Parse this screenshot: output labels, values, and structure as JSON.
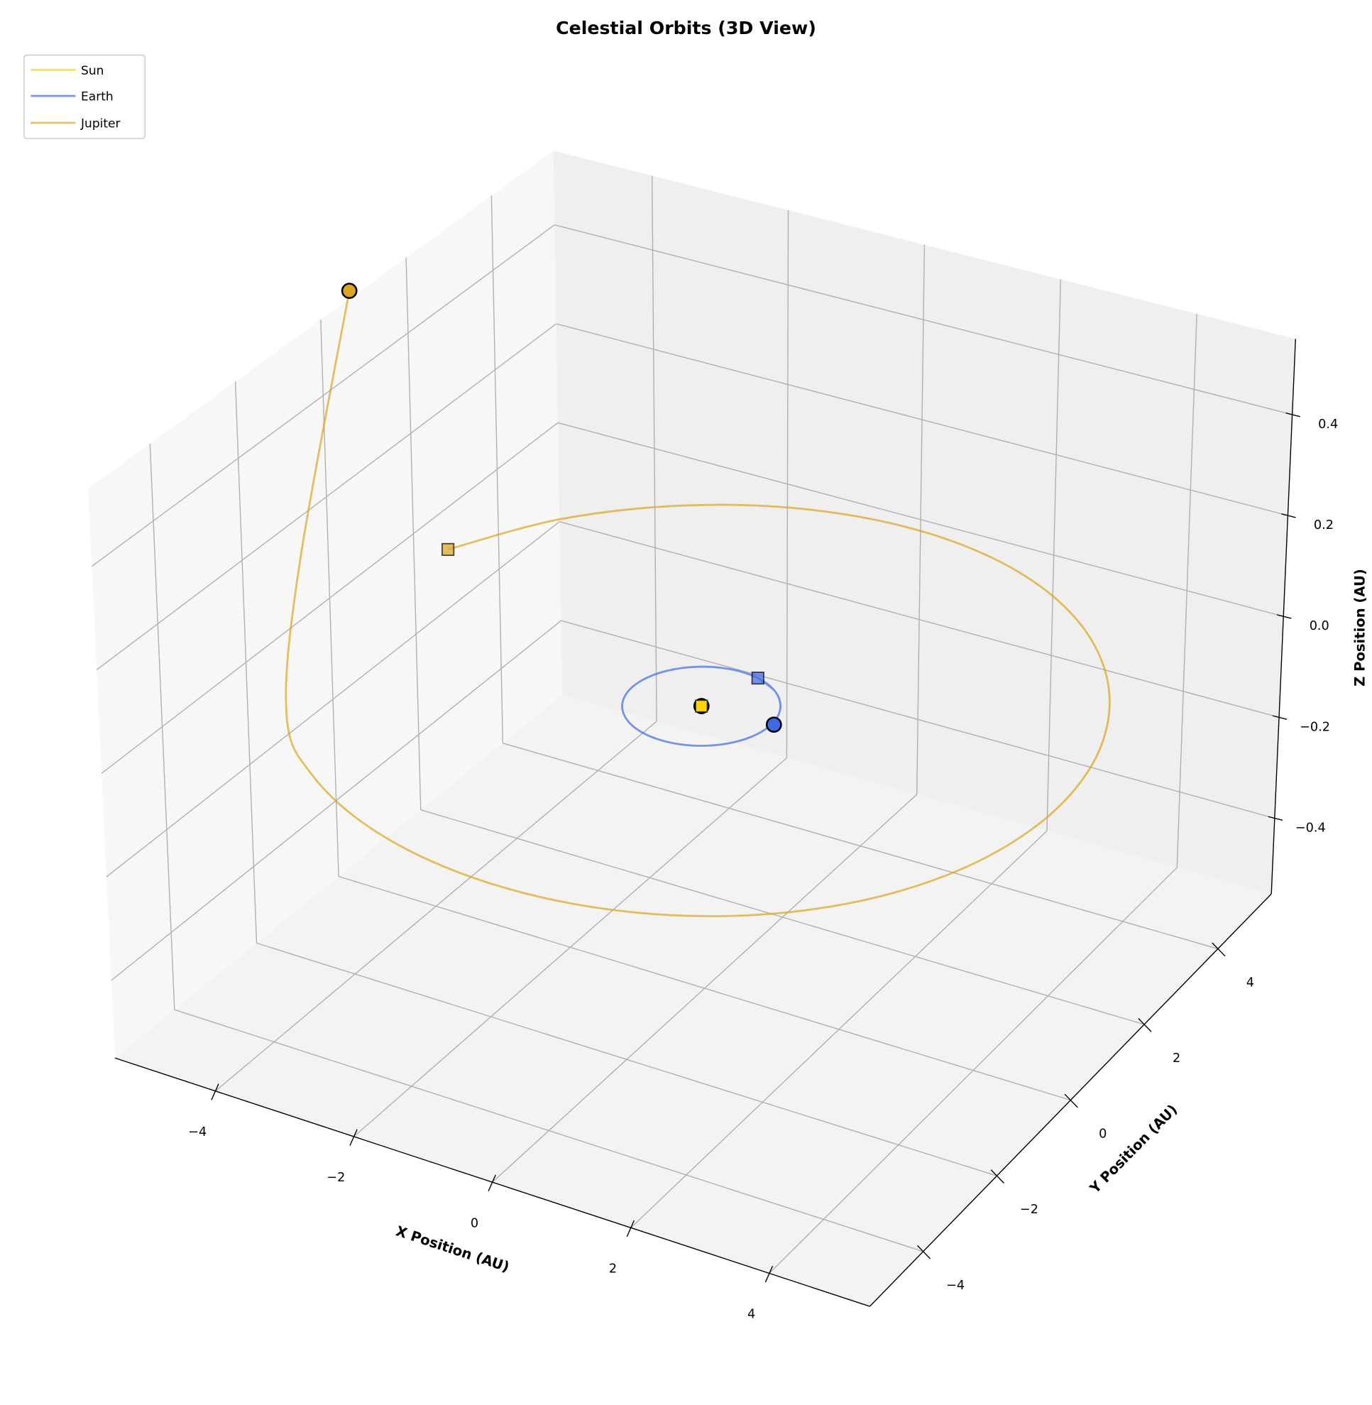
{
  "chart_data": {
    "type": "line3d",
    "title": "Celestial Orbits (3D View)",
    "xlabel": "X Position (AU)",
    "ylabel": "Y Position (AU)",
    "zlabel": "Z Position (AU)",
    "xlim": [
      -5.45,
      5.45
    ],
    "ylim": [
      -5.45,
      5.45
    ],
    "zlim": [
      -0.55,
      0.55
    ],
    "xticks": [
      -4,
      -2,
      0,
      2,
      4
    ],
    "yticks": [
      -4,
      -2,
      0,
      2,
      4
    ],
    "zticks": [
      -0.4,
      -0.2,
      0.0,
      0.2,
      0.4
    ],
    "xtick_labels": [
      "−4",
      "−2",
      "0",
      "2",
      "4"
    ],
    "ytick_labels": [
      "−4",
      "−2",
      "0",
      "2",
      "4"
    ],
    "ztick_labels": [
      "−0.4",
      "−0.2",
      "0.0",
      "0.2",
      "0.4"
    ],
    "grid": true,
    "legend_position": "top-left",
    "start_marker": "square",
    "end_marker": "circle",
    "series": [
      {
        "name": "Sun",
        "color": "#FFD700",
        "x": [
          0,
          0
        ],
        "y": [
          0,
          0
        ],
        "z": [
          0,
          0
        ]
      },
      {
        "name": "Earth",
        "color": "#4169E1",
        "x": [
          0.259,
          0.629,
          0.891,
          0.999,
          0.934,
          0.707,
          0.358,
          -0.052,
          -0.454,
          -0.777,
          -0.966,
          -0.988,
          -0.839,
          -0.545,
          -0.156,
          0.259,
          0.629,
          0.891,
          1.03
        ],
        "y": [
          0.966,
          0.777,
          0.454,
          0.052,
          -0.358,
          -0.707,
          -0.934,
          -0.999,
          -0.891,
          -0.629,
          -0.259,
          0.156,
          0.545,
          0.839,
          0.988,
          0.966,
          0.777,
          0.454,
          0.054
        ],
        "z": [
          0,
          0,
          0,
          0,
          0,
          0,
          0,
          0,
          0,
          0,
          0,
          0,
          0,
          0,
          0,
          0,
          0,
          0,
          0
        ]
      },
      {
        "name": "Jupiter",
        "color": "#DAA520",
        "x": [
          -4.855,
          -4.041,
          -2.832,
          -1.346,
          0.272,
          1.864,
          3.272,
          4.361,
          5.023,
          5.193,
          4.855,
          4.041,
          2.832,
          1.346,
          -0.272,
          -1.864,
          -3.272,
          -4.361,
          -5.023,
          -5.193
        ],
        "y": [
          1.864,
          3.272,
          4.361,
          5.023,
          5.193,
          4.855,
          4.041,
          2.832,
          1.346,
          -0.272,
          -1.864,
          -3.272,
          -4.361,
          -5.023,
          -5.193,
          -4.855,
          -4.041,
          -2.832,
          -1.346,
          0.272
        ],
        "z": [
          0,
          0,
          0,
          0,
          0,
          0,
          0,
          0,
          0,
          0,
          0,
          0,
          0,
          0,
          0,
          0,
          0,
          0,
          0.17,
          0.6
        ]
      }
    ]
  }
}
